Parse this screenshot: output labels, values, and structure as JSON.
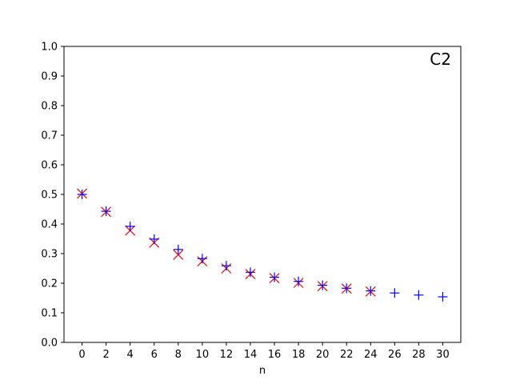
{
  "chart_data": {
    "type": "scatter",
    "title": "",
    "panel_label": "C2",
    "xlabel": "n",
    "ylabel": "",
    "xlim": [
      -1.5,
      31.5
    ],
    "ylim": [
      0.0,
      1.0
    ],
    "xticks": [
      0,
      2,
      4,
      6,
      8,
      10,
      12,
      14,
      16,
      18,
      20,
      22,
      24,
      26,
      28,
      30
    ],
    "yticks": [
      "0.0",
      "0.1",
      "0.2",
      "0.3",
      "0.4",
      "0.5",
      "0.6",
      "0.7",
      "0.8",
      "0.9",
      "1.0"
    ],
    "grid": false,
    "legend": "none",
    "series": [
      {
        "marker": "x",
        "color": "#ff0000",
        "x": [
          0,
          2,
          4,
          6,
          8,
          10,
          12,
          14,
          16,
          18,
          20,
          22,
          24
        ],
        "y": [
          0.503,
          0.441,
          0.378,
          0.337,
          0.296,
          0.274,
          0.25,
          0.231,
          0.217,
          0.201,
          0.19,
          0.182,
          0.172
        ]
      },
      {
        "marker": "+",
        "color": "#0000ff",
        "x": [
          0,
          2,
          4,
          6,
          8,
          10,
          12,
          14,
          16,
          18,
          20,
          22,
          24,
          26,
          28,
          30
        ],
        "y": [
          0.5,
          0.443,
          0.392,
          0.349,
          0.314,
          0.283,
          0.259,
          0.237,
          0.22,
          0.206,
          0.193,
          0.183,
          0.174,
          0.167,
          0.16,
          0.154
        ]
      }
    ]
  }
}
